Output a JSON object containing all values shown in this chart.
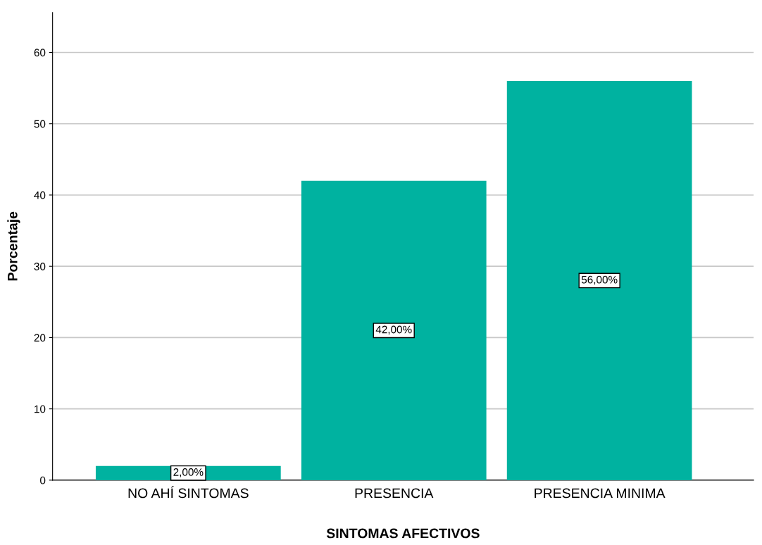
{
  "chart_data": {
    "type": "bar",
    "xlabel": "SINTOMAS AFECTIVOS",
    "ylabel": "Porcentaje",
    "categories": [
      "NO AHÍ SINTOMAS",
      "PRESENCIA",
      "PRESENCIA MINIMA"
    ],
    "values": [
      2,
      42,
      56
    ],
    "color": "#00b2a0",
    "value_labels": [
      "2,00%",
      "42,00%",
      "56,00%"
    ],
    "ylim": [
      0,
      65.6
    ],
    "yticks": [
      0,
      10,
      20,
      30,
      40,
      50,
      60
    ],
    "grid": "y"
  }
}
